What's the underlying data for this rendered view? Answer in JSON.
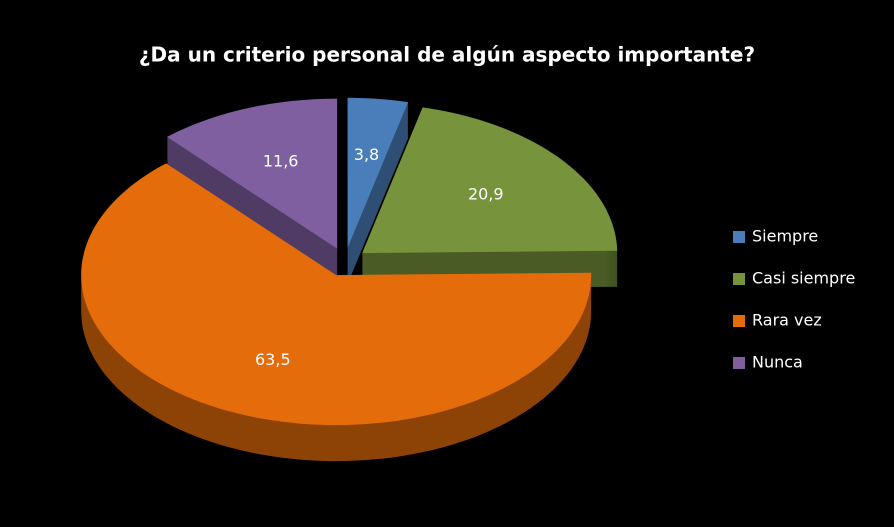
{
  "chart_data": {
    "type": "pie",
    "title": "¿Da un criterio personal de algún aspecto importante?",
    "categories": [
      "Siempre",
      "Casi siempre",
      "Rara vez",
      "Nunca"
    ],
    "values": [
      3.8,
      20.9,
      63.5,
      11.6
    ],
    "value_labels": [
      "3,8",
      "20,9",
      "63,5",
      "11,6"
    ],
    "colors": [
      "#4a7ebb",
      "#77933c",
      "#e46c0a",
      "#7f5fa0"
    ],
    "legend": "right"
  }
}
